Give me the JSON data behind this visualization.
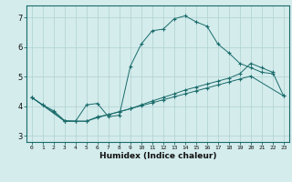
{
  "background_color": "#d4ecec",
  "grid_color": "#afd0d0",
  "line_color": "#1a6b6b",
  "xlabel": "Humidex (Indice chaleur)",
  "xlim": [
    -0.5,
    23.5
  ],
  "ylim": [
    2.8,
    7.4
  ],
  "yticks": [
    3,
    4,
    5,
    6,
    7
  ],
  "xticks": [
    0,
    1,
    2,
    3,
    4,
    5,
    6,
    7,
    8,
    9,
    10,
    11,
    12,
    13,
    14,
    15,
    16,
    17,
    18,
    19,
    20,
    21,
    22,
    23
  ],
  "line1_x": [
    0,
    1,
    2,
    3,
    4,
    5,
    6,
    7,
    8,
    9,
    10,
    11,
    12,
    13,
    14,
    15,
    16,
    17,
    18,
    19,
    20,
    21,
    22
  ],
  "line1_y": [
    4.3,
    4.05,
    3.8,
    3.5,
    3.5,
    4.05,
    4.1,
    3.65,
    3.7,
    5.35,
    6.1,
    6.55,
    6.6,
    6.95,
    7.05,
    6.85,
    6.7,
    6.1,
    5.8,
    5.45,
    5.3,
    5.15,
    5.1
  ],
  "line2_x": [
    0,
    1,
    2,
    3,
    4,
    5,
    6,
    7,
    8,
    9,
    10,
    11,
    12,
    13,
    14,
    15,
    16,
    17,
    18,
    19,
    20,
    23
  ],
  "line2_y": [
    4.3,
    4.05,
    3.85,
    3.52,
    3.5,
    3.5,
    3.62,
    3.72,
    3.82,
    3.92,
    4.02,
    4.12,
    4.22,
    4.32,
    4.42,
    4.52,
    4.62,
    4.72,
    4.82,
    4.92,
    5.02,
    4.35
  ],
  "line3_x": [
    0,
    3,
    4,
    5,
    6,
    7,
    8,
    9,
    10,
    11,
    12,
    13,
    14,
    15,
    16,
    17,
    18,
    19,
    20,
    21,
    22,
    23
  ],
  "line3_y": [
    4.3,
    3.5,
    3.5,
    3.5,
    3.65,
    3.72,
    3.82,
    3.92,
    4.05,
    4.18,
    4.3,
    4.42,
    4.55,
    4.65,
    4.75,
    4.85,
    4.95,
    5.1,
    5.45,
    5.3,
    5.15,
    4.35
  ]
}
